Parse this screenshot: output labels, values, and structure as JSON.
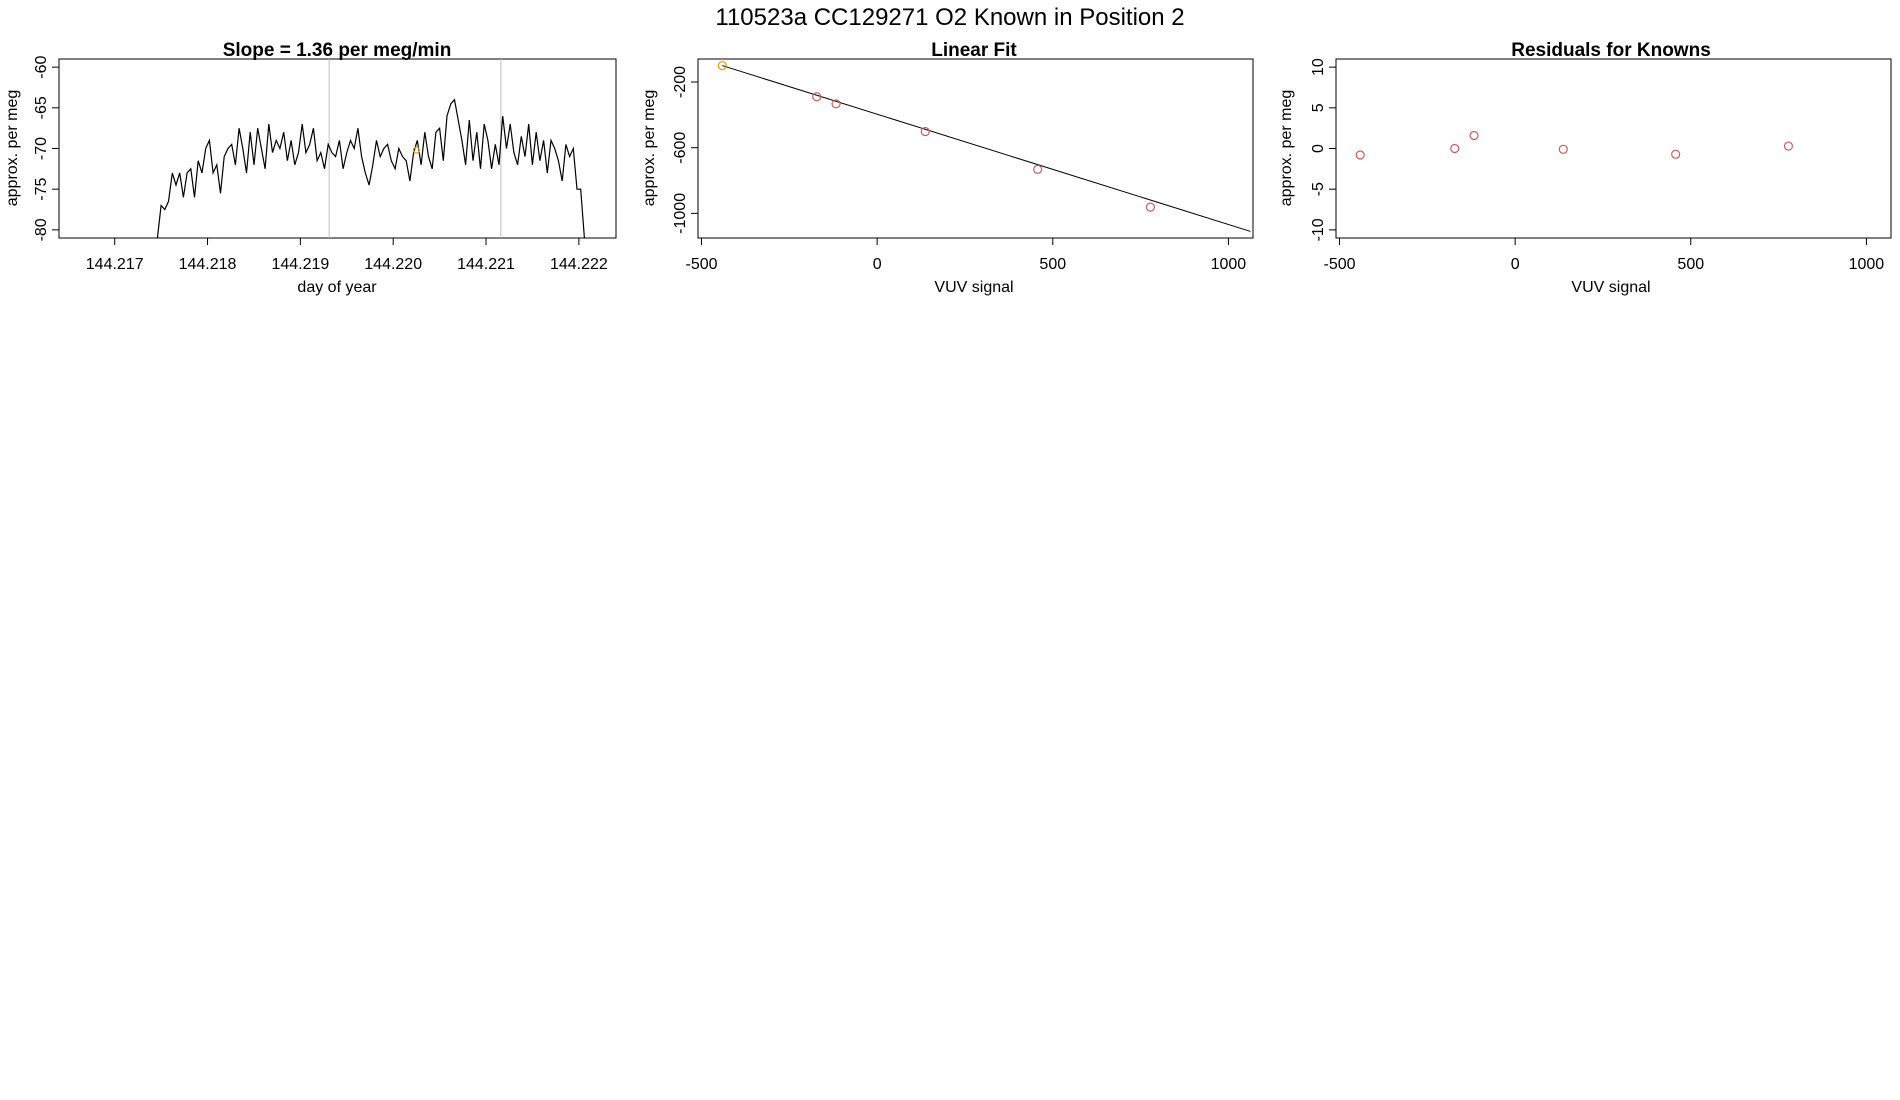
{
  "figure_title": "110523a      CC129271    O2 Known in Position  2",
  "colors": {
    "line": "#000000",
    "marker": "#cd5c5c",
    "marker_highlight": "#e69f00",
    "vline": "#bebebe"
  },
  "chart_data": [
    {
      "type": "line",
      "title": "Slope =  1.36  per meg/min",
      "xlabel": "day of year",
      "ylabel": "approx. per meg",
      "xlim": [
        144.2164,
        144.2224
      ],
      "ylim": [
        -81,
        -59
      ],
      "x_ticks": [
        144.217,
        144.218,
        144.219,
        144.22,
        144.221,
        144.222
      ],
      "x_tick_labels": [
        "144.217",
        "144.218",
        "144.219",
        "144.220",
        "144.221",
        "144.222"
      ],
      "y_ticks": [
        -80,
        -75,
        -70,
        -65,
        -60
      ],
      "y_tick_labels": [
        "-80",
        "-75",
        "-70",
        "-65",
        "-60"
      ],
      "vertical_lines": [
        144.21931,
        144.22116
      ],
      "highlight_point": {
        "x": 144.22025,
        "y": -70.2
      },
      "x": [
        144.21746,
        144.2175,
        144.21754,
        144.21758,
        144.21762,
        144.21766,
        144.2177,
        144.21774,
        144.21778,
        144.21782,
        144.21786,
        144.2179,
        144.21794,
        144.21798,
        144.21802,
        144.21806,
        144.2181,
        144.21814,
        144.21818,
        144.21822,
        144.21826,
        144.2183,
        144.21834,
        144.21838,
        144.21842,
        144.21846,
        144.2185,
        144.21854,
        144.21858,
        144.21862,
        144.21866,
        144.2187,
        144.21874,
        144.21878,
        144.21882,
        144.21886,
        144.2189,
        144.21894,
        144.21898,
        144.21902,
        144.21906,
        144.2191,
        144.21914,
        144.21918,
        144.21922,
        144.21926,
        144.2193,
        144.21934,
        144.21938,
        144.21942,
        144.21946,
        144.2195,
        144.21954,
        144.21958,
        144.21962,
        144.21966,
        144.2197,
        144.21974,
        144.21978,
        144.21982,
        144.21986,
        144.2199,
        144.21994,
        144.21998,
        144.22002,
        144.22006,
        144.2201,
        144.22014,
        144.22018,
        144.22022,
        144.22026,
        144.2203,
        144.22034,
        144.22038,
        144.22042,
        144.22046,
        144.2205,
        144.22054,
        144.22058,
        144.22062,
        144.22066,
        144.2207,
        144.22074,
        144.22078,
        144.22082,
        144.22086,
        144.2209,
        144.22094,
        144.22098,
        144.22102,
        144.22106,
        144.2211,
        144.22114,
        144.22118,
        144.22122,
        144.22126,
        144.2213,
        144.22134,
        144.22138,
        144.22142,
        144.22146,
        144.2215,
        144.22154,
        144.22158,
        144.22162,
        144.22166,
        144.2217,
        144.22174,
        144.22178,
        144.22182,
        144.22186,
        144.2219,
        144.22194,
        144.22198,
        144.22202,
        144.22206
      ],
      "y": [
        -81,
        -77,
        -77.5,
        -76.5,
        -73,
        -74.5,
        -73,
        -76,
        -73,
        -72.5,
        -76,
        -71.5,
        -73,
        -70,
        -69,
        -73,
        -72,
        -75.5,
        -71,
        -70,
        -69.5,
        -72,
        -67.5,
        -70,
        -73,
        -68,
        -72,
        -67.5,
        -70,
        -72.5,
        -67,
        -70.5,
        -69,
        -70,
        -68,
        -71.5,
        -69,
        -72,
        -70.5,
        -67,
        -70.5,
        -69.5,
        -67.5,
        -71.5,
        -70.5,
        -72.5,
        -69.5,
        -70.5,
        -71,
        -69,
        -72.5,
        -70.5,
        -69,
        -70,
        -67.5,
        -71,
        -73,
        -74.5,
        -72,
        -69,
        -71,
        -70,
        -69.5,
        -71.5,
        -72.5,
        -70,
        -71,
        -71.5,
        -74,
        -70.5,
        -69,
        -72,
        -68,
        -71,
        -72.5,
        -68,
        -67.5,
        -71.5,
        -66,
        -64.5,
        -64,
        -66.5,
        -69,
        -72,
        -66.5,
        -71.5,
        -68,
        -72.5,
        -67,
        -69,
        -72.5,
        -69.5,
        -72,
        -66,
        -70,
        -67,
        -70.5,
        -72,
        -68.5,
        -71,
        -67,
        -72,
        -68,
        -71.5,
        -69,
        -73,
        -69,
        -70,
        -71.5,
        -74,
        -69.5,
        -71,
        -70,
        -75,
        -75,
        -81
      ]
    },
    {
      "type": "scatter",
      "title": "Linear Fit",
      "xlabel": "VUV signal",
      "ylabel": "approx. per meg",
      "xlim": [
        -510,
        1070
      ],
      "ylim": [
        -1150,
        -60
      ],
      "x_ticks": [
        -500,
        0,
        500,
        1000
      ],
      "x_tick_labels": [
        "-500",
        "0",
        "500",
        "1000"
      ],
      "y_ticks": [
        -1000,
        -600,
        -200
      ],
      "y_tick_labels": [
        "-1000",
        "-600",
        "-200"
      ],
      "fit_line": {
        "x": [
          -441,
          1063
        ],
        "y": [
          -100,
          -1110
        ]
      },
      "points": {
        "x": [
          -441,
          -172,
          -117,
          137,
          457,
          778
        ],
        "y": [
          -100,
          -290,
          -333,
          -502,
          -732,
          -962
        ],
        "highlight_index": 0
      }
    },
    {
      "type": "scatter",
      "title": "Residuals for Knowns",
      "xlabel": "VUV signal",
      "ylabel": "approx. per meg",
      "xlim": [
        -510,
        1070
      ],
      "ylim": [
        -11,
        11
      ],
      "x_ticks": [
        -500,
        0,
        500,
        1000
      ],
      "x_tick_labels": [
        "-500",
        "0",
        "500",
        "1000"
      ],
      "y_ticks": [
        -10,
        -5,
        0,
        5,
        10
      ],
      "y_tick_labels": [
        "-10",
        "-5",
        "0",
        "5",
        "10"
      ],
      "points": {
        "x": [
          -441,
          -172,
          -117,
          137,
          457,
          778
        ],
        "y": [
          -0.8,
          0.0,
          1.6,
          -0.1,
          -0.7,
          0.3
        ]
      }
    }
  ]
}
